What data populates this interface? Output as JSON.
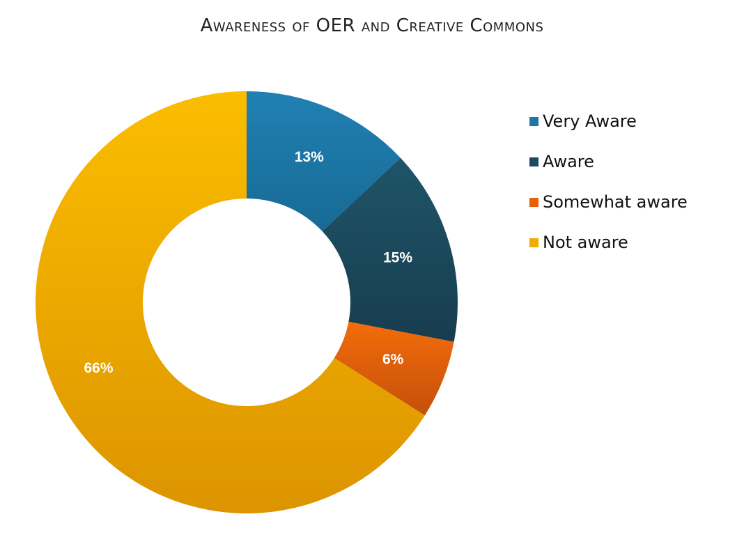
{
  "chart_data": {
    "type": "pie",
    "donut": true,
    "title": "Awareness of OER and Creative Commons",
    "categories": [
      "Very Aware",
      "Aware",
      "Somewhat aware",
      "Not aware"
    ],
    "values": [
      13,
      15,
      6,
      66
    ],
    "value_labels": [
      "13%",
      "15%",
      "6%",
      "66%"
    ],
    "unit": "%",
    "colors": [
      "#1c77a6",
      "#1b4a5f",
      "#e8600a",
      "#f0aa00"
    ],
    "legend_position": "right",
    "start_angle": "12 o'clock",
    "direction": "clockwise"
  }
}
